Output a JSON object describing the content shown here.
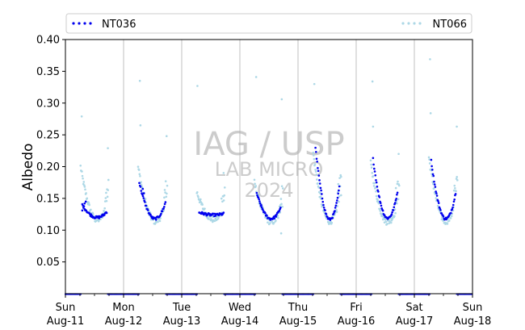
{
  "chart_data": {
    "type": "scatter",
    "ylabel": "Albedo",
    "xlabel": "",
    "ylim": [
      0.0,
      0.4
    ],
    "xlim": [
      0,
      7
    ],
    "y_ticks": [
      "0.05",
      "0.10",
      "0.15",
      "0.20",
      "0.25",
      "0.30",
      "0.35",
      "0.40"
    ],
    "x_ticks": [
      {
        "day": "Sun",
        "date": "Aug-11"
      },
      {
        "day": "Mon",
        "date": "Aug-12"
      },
      {
        "day": "Tue",
        "date": "Aug-13"
      },
      {
        "day": "Wed",
        "date": "Aug-14"
      },
      {
        "day": "Thu",
        "date": "Aug-15"
      },
      {
        "day": "Fri",
        "date": "Aug-16"
      },
      {
        "day": "Sat",
        "date": "Aug-17"
      },
      {
        "day": "Sun",
        "date": "Aug-18"
      }
    ],
    "grid": "vertical lines at day boundaries",
    "legend_position": "top, above plot",
    "watermark": {
      "line1": "IAG / USP",
      "line2": "LAB MICRO",
      "line3": "2024"
    },
    "series": [
      {
        "name": "NT036",
        "color": "#0000ee",
        "days": [
          {
            "start": 0.29,
            "end": 0.71,
            "peak": 0.14,
            "base": 0.12,
            "early": [
              [
                0.29,
                0.131
              ],
              [
                0.31,
                0.138
              ],
              [
                0.33,
                0.142
              ],
              [
                0.35,
                0.145
              ]
            ]
          },
          {
            "start": 1.27,
            "end": 1.72,
            "peak": 0.175,
            "base": 0.118,
            "early": [
              [
                1.33,
                0.165
              ],
              [
                1.35,
                0.158
              ]
            ]
          },
          {
            "start": 2.3,
            "end": 2.72,
            "peak": 0.128,
            "base": 0.124,
            "early": []
          },
          {
            "start": 3.29,
            "end": 3.7,
            "peak": 0.158,
            "base": 0.118,
            "early": []
          },
          {
            "start": 4.3,
            "end": 4.71,
            "peak": 0.23,
            "base": 0.117,
            "early": []
          },
          {
            "start": 5.29,
            "end": 5.71,
            "peak": 0.212,
            "base": 0.119,
            "early": []
          },
          {
            "start": 6.29,
            "end": 6.71,
            "peak": 0.209,
            "base": 0.118,
            "early": []
          }
        ],
        "night_value": 0.0
      },
      {
        "name": "NT066",
        "color": "#add8e6",
        "days": [
          {
            "start": 0.26,
            "end": 0.74,
            "peak": 0.2,
            "base": 0.116,
            "outliers": [
              [
                0.28,
                0.279
              ],
              [
                0.73,
                0.229
              ]
            ]
          },
          {
            "start": 1.25,
            "end": 1.75,
            "peak": 0.2,
            "base": 0.114,
            "outliers": [
              [
                1.28,
                0.335
              ],
              [
                1.29,
                0.265
              ],
              [
                1.74,
                0.248
              ]
            ]
          },
          {
            "start": 2.26,
            "end": 2.74,
            "peak": 0.16,
            "base": 0.117,
            "outliers": [
              [
                2.27,
                0.327
              ],
              [
                2.72,
                0.19
              ]
            ]
          },
          {
            "start": 3.25,
            "end": 3.74,
            "peak": 0.175,
            "base": 0.113,
            "outliers": [
              [
                3.28,
                0.341
              ],
              [
                3.72,
                0.306
              ],
              [
                3.71,
                0.095
              ]
            ]
          },
          {
            "start": 4.26,
            "end": 4.74,
            "peak": 0.222,
            "base": 0.114,
            "outliers": [
              [
                4.28,
                0.33
              ],
              [
                4.74,
                0.155
              ]
            ]
          },
          {
            "start": 5.25,
            "end": 5.74,
            "peak": 0.205,
            "base": 0.113,
            "outliers": [
              [
                5.28,
                0.334
              ],
              [
                5.29,
                0.263
              ],
              [
                5.73,
                0.22
              ]
            ]
          },
          {
            "start": 6.25,
            "end": 6.74,
            "peak": 0.215,
            "base": 0.114,
            "outliers": [
              [
                6.27,
                0.369
              ],
              [
                6.28,
                0.284
              ],
              [
                6.73,
                0.263
              ]
            ]
          }
        ],
        "night_value": 0.0
      }
    ]
  }
}
